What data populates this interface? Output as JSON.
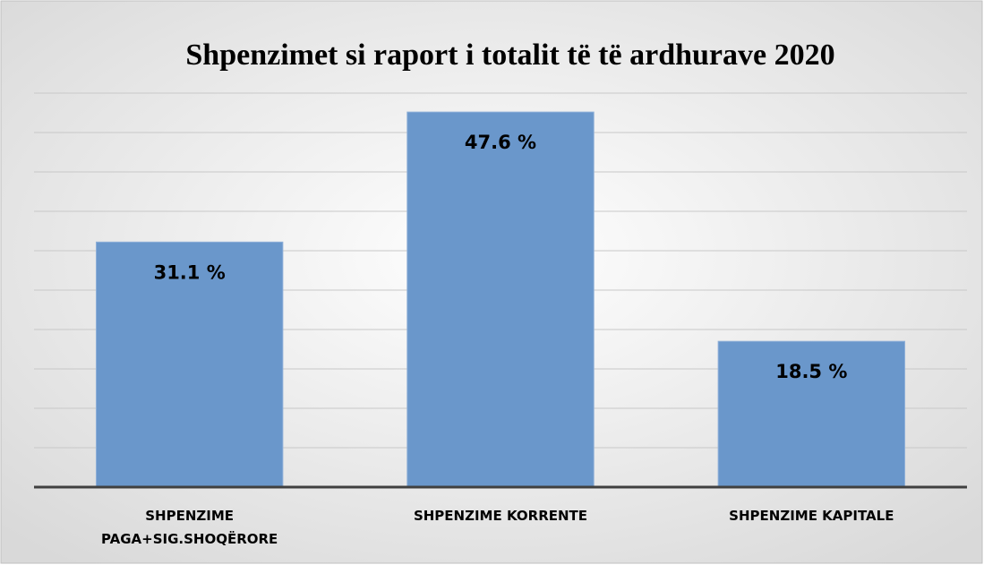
{
  "chart_data": {
    "type": "bar",
    "title": "Shpenzimet si raport i totalit të të ardhurave  2020",
    "categories": [
      "SHPENZIME PAGA+SIG.SHOQËRORE",
      "SHPENZIME KORRENTE",
      "SHPENZIME KAPITALE"
    ],
    "values": [
      31.1,
      47.6,
      18.5
    ],
    "value_labels": [
      "31.1 %",
      "47.6 %",
      "18.5 %"
    ],
    "color": "#6a97cb",
    "ylim": [
      0,
      50
    ],
    "yticks": [
      0,
      5,
      10,
      15,
      20,
      25,
      30,
      35,
      40,
      45,
      50
    ],
    "grid": true
  }
}
